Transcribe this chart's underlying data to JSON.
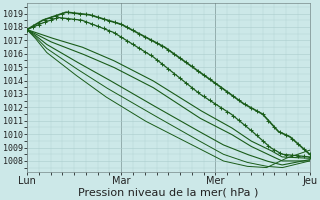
{
  "bg_color": "#cce8e8",
  "grid_color": "#aacccc",
  "line_color": "#1a5c1a",
  "xlabel": "Pression niveau de la mer( hPa )",
  "xlabel_fontsize": 8,
  "ylabel_vals": [
    1008,
    1009,
    1010,
    1011,
    1012,
    1013,
    1014,
    1015,
    1016,
    1017,
    1018,
    1019
  ],
  "ylim": [
    1007.2,
    1019.8
  ],
  "xlim": [
    0,
    72
  ],
  "xtick_positions": [
    0,
    24,
    48,
    72
  ],
  "xtick_labels": [
    "Lun",
    "Mar",
    "Mer",
    "Jeu"
  ],
  "lines": [
    {
      "h": [
        0,
        4,
        10,
        16,
        24,
        35,
        48,
        55,
        60,
        64,
        67,
        72
      ],
      "v": [
        1017.8,
        1018.5,
        1019.1,
        1018.9,
        1018.2,
        1016.5,
        1013.8,
        1012.3,
        1011.5,
        1010.2,
        1009.8,
        1008.5
      ],
      "lw": 1.2,
      "marker": true
    },
    {
      "h": [
        0,
        4,
        8,
        14,
        22,
        32,
        44,
        52,
        57,
        62,
        65,
        72
      ],
      "v": [
        1017.8,
        1018.3,
        1018.7,
        1018.5,
        1017.6,
        1015.8,
        1013.0,
        1011.5,
        1010.3,
        1009.0,
        1008.5,
        1008.3
      ],
      "lw": 0.9,
      "marker": true
    },
    {
      "h": [
        0,
        2,
        6,
        14,
        22,
        32,
        44,
        52,
        57,
        62,
        65,
        72
      ],
      "v": [
        1017.8,
        1017.6,
        1017.2,
        1016.5,
        1015.5,
        1014.0,
        1011.8,
        1010.5,
        1009.5,
        1008.8,
        1008.3,
        1008.2
      ],
      "lw": 0.8,
      "marker": false
    },
    {
      "h": [
        0,
        2,
        6,
        14,
        22,
        32,
        44,
        52,
        57,
        62,
        65,
        72
      ],
      "v": [
        1017.8,
        1017.5,
        1016.9,
        1016.0,
        1015.0,
        1013.5,
        1011.2,
        1010.0,
        1009.1,
        1008.4,
        1008.0,
        1008.0
      ],
      "lw": 0.8,
      "marker": false
    },
    {
      "h": [
        0,
        2,
        5,
        12,
        20,
        30,
        42,
        50,
        56,
        61,
        65,
        72
      ],
      "v": [
        1017.8,
        1017.4,
        1016.7,
        1015.5,
        1014.2,
        1012.5,
        1010.5,
        1009.2,
        1008.5,
        1008.0,
        1007.7,
        1008.1
      ],
      "lw": 0.8,
      "marker": false
    },
    {
      "h": [
        0,
        2,
        5,
        12,
        20,
        30,
        42,
        50,
        56,
        61,
        65,
        72
      ],
      "v": [
        1017.8,
        1017.3,
        1016.4,
        1015.0,
        1013.5,
        1011.8,
        1009.8,
        1008.5,
        1007.9,
        1007.6,
        1007.5,
        1008.0
      ],
      "lw": 0.7,
      "marker": false
    },
    {
      "h": [
        0,
        2,
        5,
        12,
        20,
        30,
        42,
        50,
        56,
        61,
        66,
        72
      ],
      "v": [
        1017.8,
        1017.2,
        1016.1,
        1014.5,
        1012.8,
        1011.0,
        1009.2,
        1008.0,
        1007.6,
        1007.5,
        1008.2,
        1008.8
      ],
      "lw": 0.7,
      "marker": false
    }
  ]
}
